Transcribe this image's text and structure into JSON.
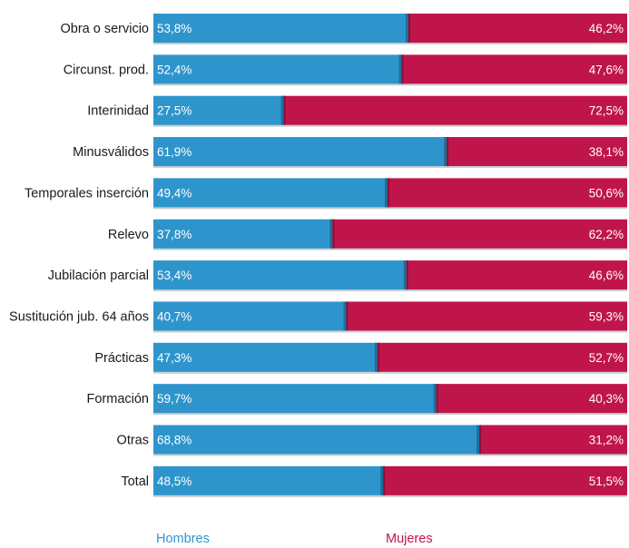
{
  "chart_data": {
    "type": "bar",
    "orientation": "horizontal",
    "stacked": true,
    "value_unit": "%",
    "categories": [
      "Obra o servicio",
      "Circunst. prod.",
      "Interinidad",
      "Minusválidos",
      "Temporales inserción",
      "Relevo",
      "Jubilación parcial",
      "Sustitución jub. 64 años",
      "Prácticas",
      "Formación",
      "Otras",
      "Total"
    ],
    "series": [
      {
        "name": "Hombres",
        "color": "#2E95CC",
        "values": [
          53.8,
          52.4,
          27.5,
          61.9,
          49.4,
          37.8,
          53.4,
          40.7,
          47.3,
          59.7,
          68.8,
          48.5
        ],
        "labels": [
          "53,8%",
          "52,4%",
          "27,5%",
          "61,9%",
          "49,4%",
          "37,8%",
          "53,4%",
          "40,7%",
          "47,3%",
          "59,7%",
          "68,8%",
          "48,5%"
        ]
      },
      {
        "name": "Mujeres",
        "color": "#C0154B",
        "values": [
          46.2,
          47.6,
          72.5,
          38.1,
          50.6,
          62.2,
          46.6,
          59.3,
          52.7,
          40.3,
          31.2,
          51.5
        ],
        "labels": [
          "46,2%",
          "47,6%",
          "72,5%",
          "38,1%",
          "50,6%",
          "62,2%",
          "46,6%",
          "59,3%",
          "52,7%",
          "40,3%",
          "31,2%",
          "51,5%"
        ]
      }
    ],
    "xlim": [
      0,
      100
    ],
    "grid": false,
    "legend_position": "bottom"
  }
}
